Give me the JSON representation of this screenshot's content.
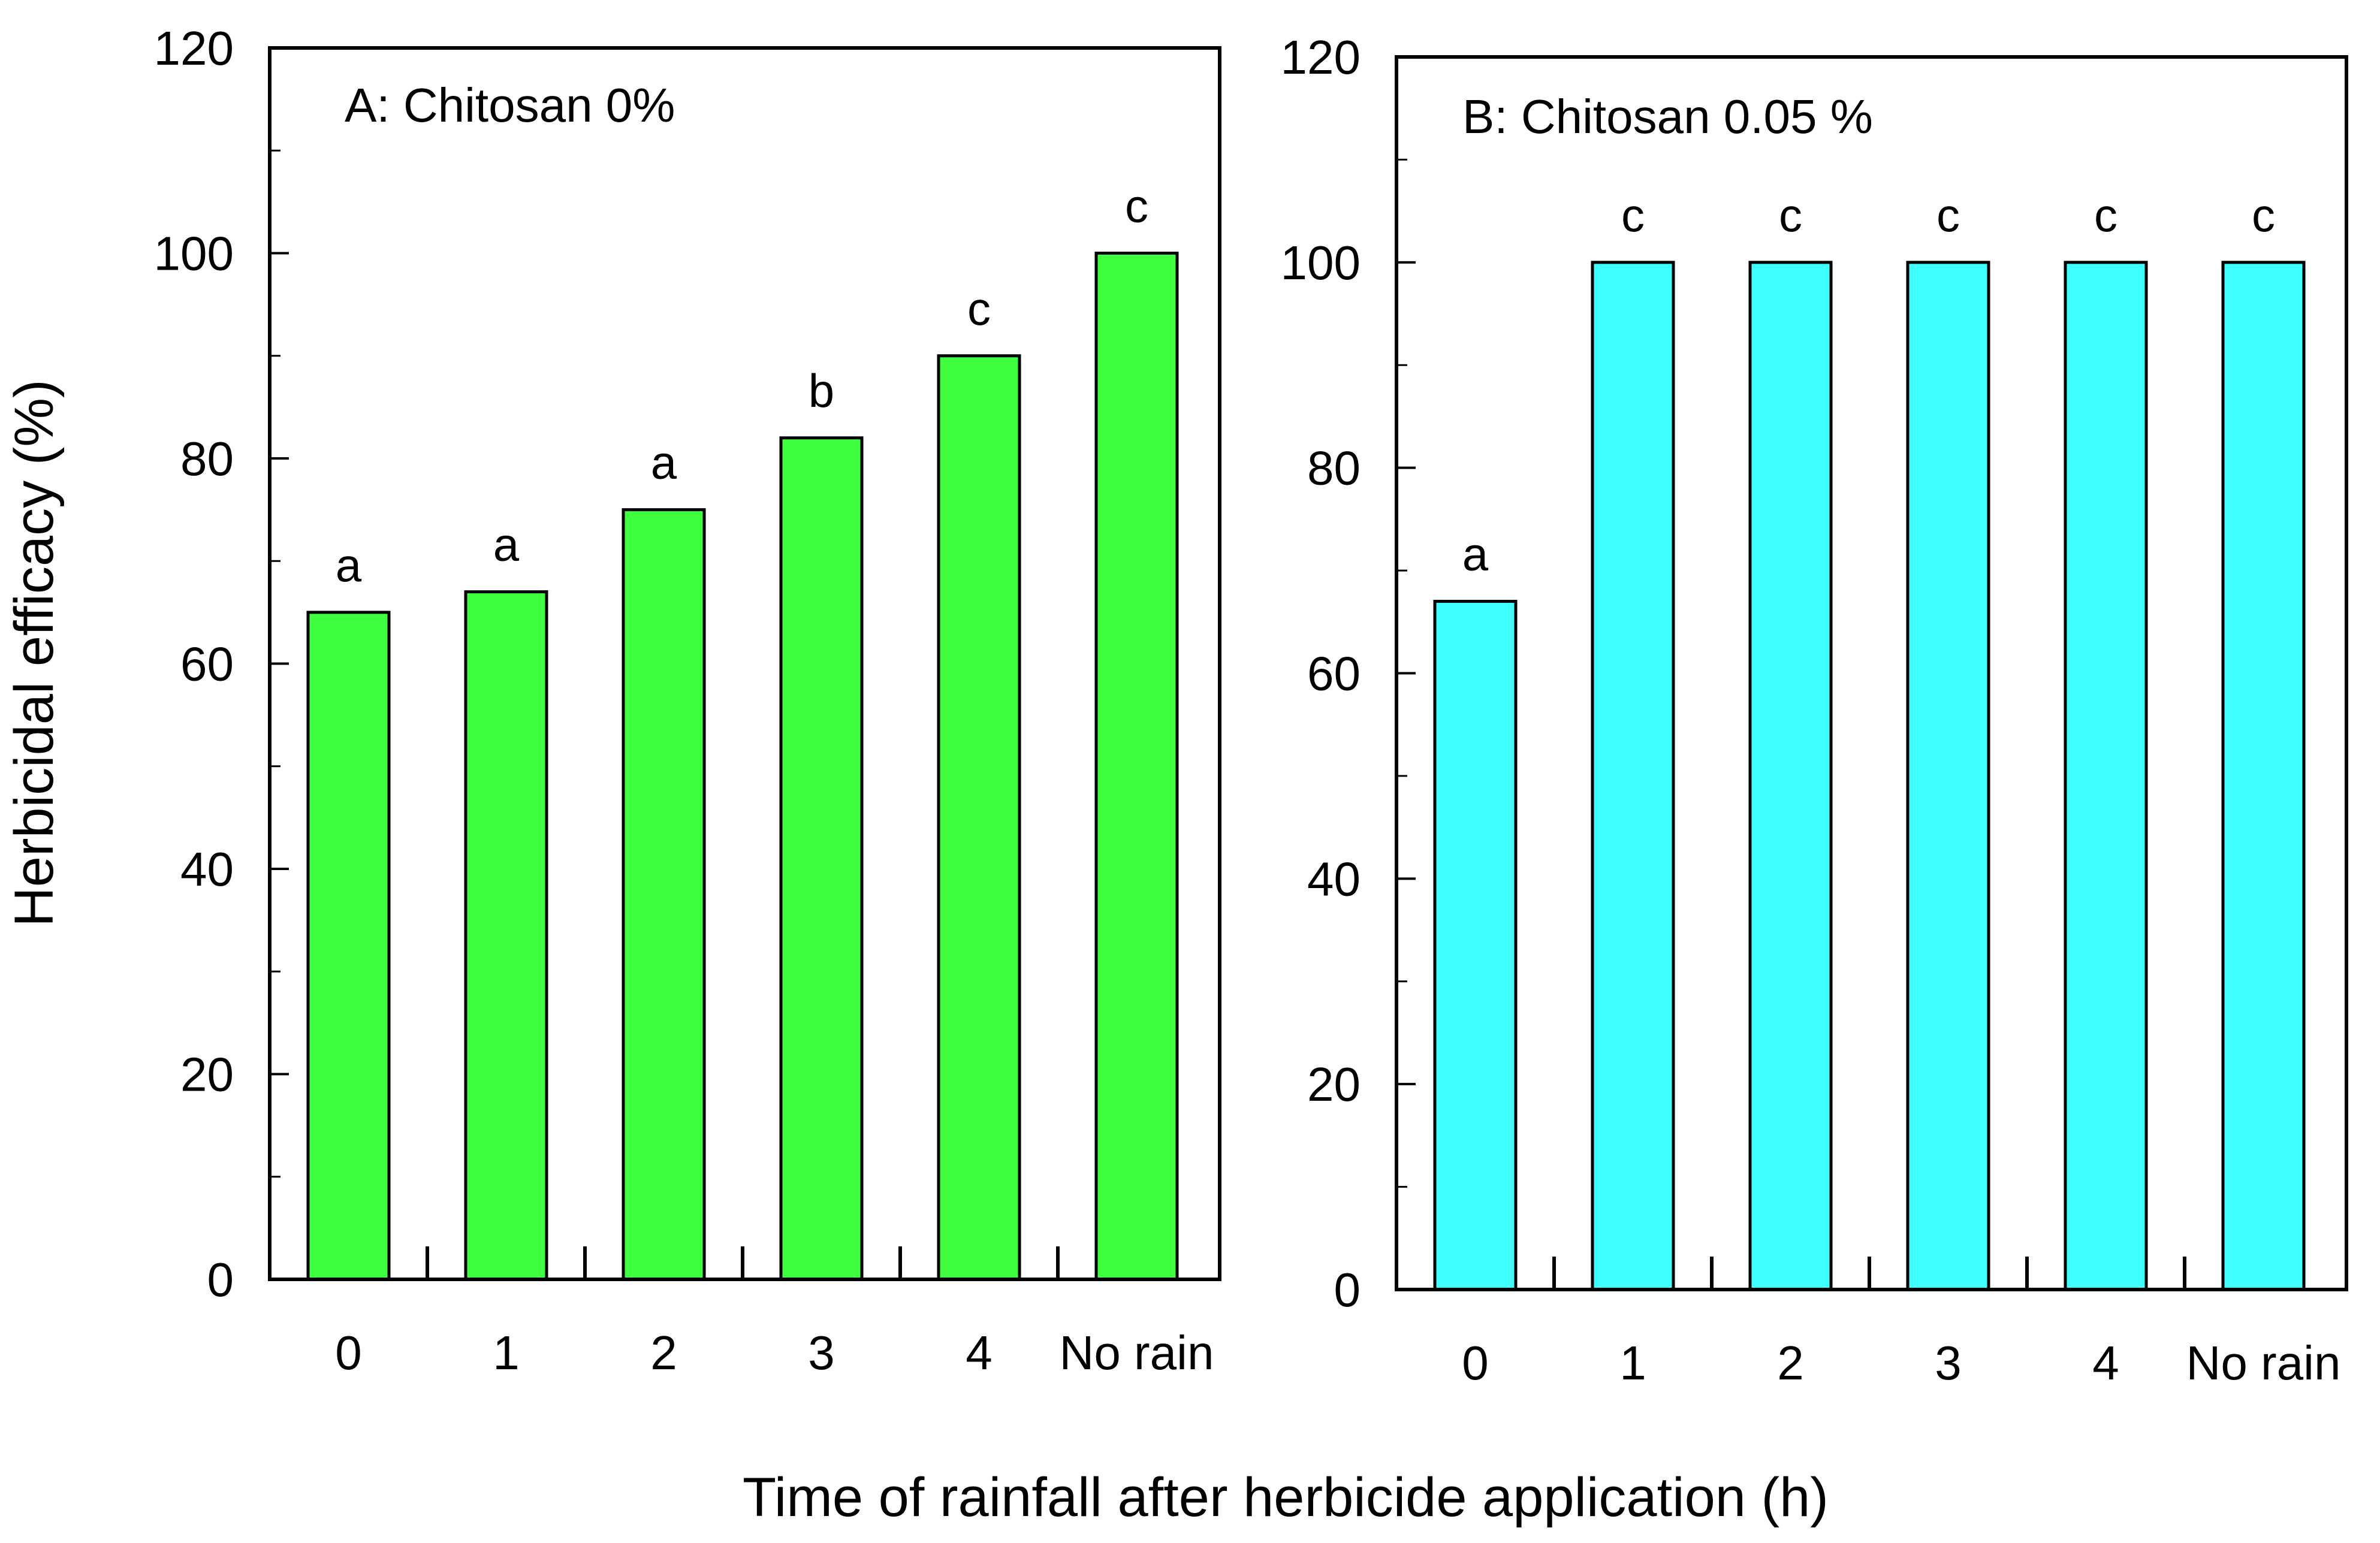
{
  "figure": {
    "ylabel": "Herbicidal efficacy (%)",
    "xlabel": "Time of rainfall after herbicide application (h)"
  },
  "chart_data": [
    {
      "type": "bar",
      "title": "A: Chitosan 0%",
      "categories": [
        "0",
        "1",
        "2",
        "3",
        "4",
        "No rain"
      ],
      "values": [
        65,
        67,
        75,
        82,
        90,
        100
      ],
      "letters": [
        "a",
        "a",
        "a",
        "b",
        "c",
        "c"
      ],
      "ylim": [
        0,
        120
      ],
      "yticks": [
        "0",
        "20",
        "40",
        "60",
        "80",
        "100",
        "120"
      ],
      "color": "#40ff40"
    },
    {
      "type": "bar",
      "title": "B: Chitosan 0.05 %",
      "categories": [
        "0",
        "1",
        "2",
        "3",
        "4",
        "No rain"
      ],
      "values": [
        67,
        100,
        100,
        100,
        100,
        100
      ],
      "letters": [
        "a",
        "c",
        "c",
        "c",
        "c",
        "c"
      ],
      "ylim": [
        0,
        120
      ],
      "yticks": [
        "0",
        "20",
        "40",
        "60",
        "80",
        "100",
        "120"
      ],
      "color": "#40ffff"
    }
  ]
}
